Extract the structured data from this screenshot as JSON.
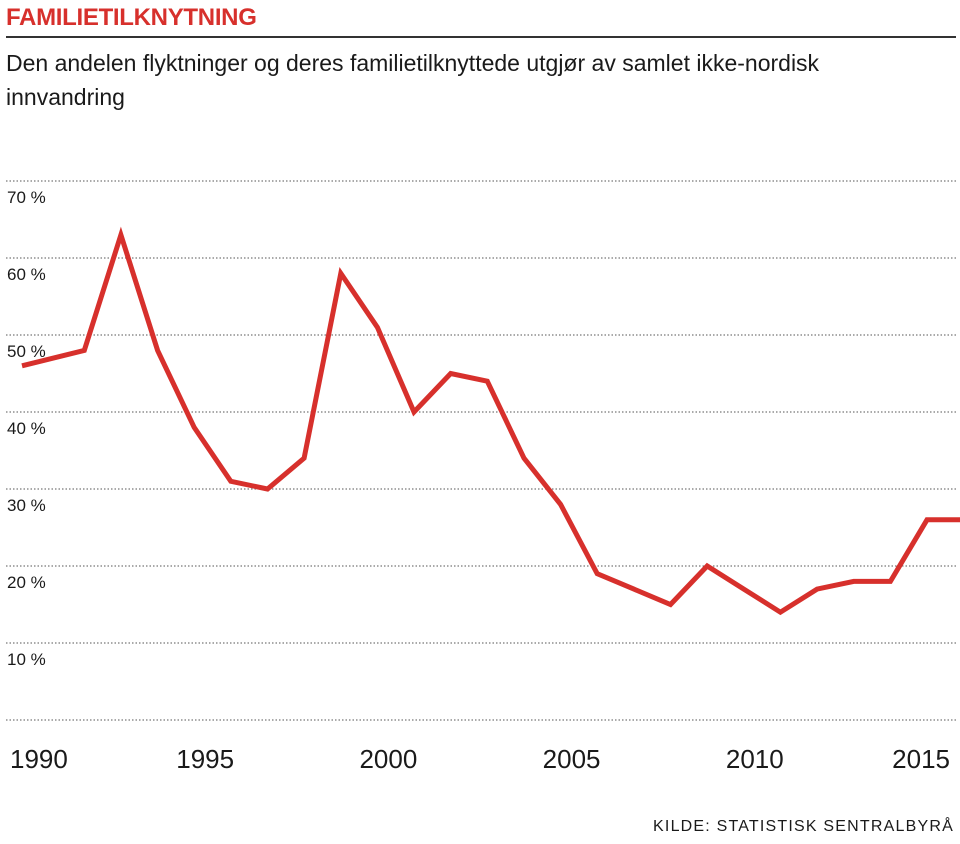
{
  "title": "FAMILIETILKNYTNING",
  "subtitle": "Den andelen flyktninger og deres familietilknyttede utgjør av samlet ikke-nordisk innvandring",
  "source": "KILDE: STATISTISK SENTRALBYRÅ",
  "colors": {
    "title": "#d7302c",
    "line": "#d7302c",
    "grid": "#555555",
    "text": "#1a1a1a"
  },
  "chart_data": {
    "type": "line",
    "title": "FAMILIETILKNYTNING",
    "subtitle": "Den andelen flyktninger og deres familietilknyttede utgjør av samlet ikke-nordisk innvandring",
    "xlabel": "",
    "ylabel": "",
    "xlim": [
      1990,
      2015.5
    ],
    "ylim": [
      0,
      70
    ],
    "grid": true,
    "x_ticks": [
      1990,
      1995,
      2000,
      2005,
      2010,
      2015
    ],
    "x_tick_labels": [
      "1990",
      "1995",
      "2000",
      "2005",
      "2010",
      "2015"
    ],
    "y_ticks": [
      10,
      20,
      30,
      40,
      50,
      60,
      70
    ],
    "y_tick_labels": [
      "10 %",
      "20 %",
      "30 %",
      "40 %",
      "50 %",
      "60 %",
      "70 %"
    ],
    "series": [
      {
        "x": [
          1990,
          1991.7,
          1992.7,
          1993.7,
          1994.7,
          1995.7,
          1996.7,
          1997.7,
          1998.7,
          1999.7,
          2000.7,
          2001.7,
          2002.7,
          2003.7,
          2004.7,
          2005.7,
          2006.7,
          2007.7,
          2008.7,
          2009.7,
          2010.7,
          2011.7,
          2012.7,
          2013.7,
          2014.7,
          2015.7
        ],
        "values": [
          46,
          48,
          63,
          48,
          38,
          31,
          30,
          34,
          58,
          51,
          40,
          45,
          44,
          34,
          28,
          19,
          17,
          15,
          20,
          17,
          14,
          17,
          18,
          18,
          26,
          26
        ]
      }
    ]
  }
}
